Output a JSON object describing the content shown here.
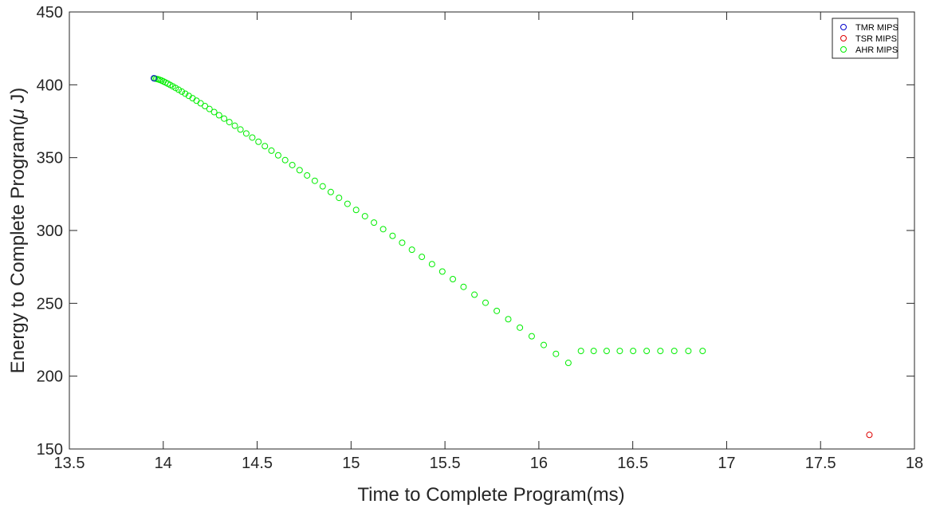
{
  "chart_data": {
    "type": "scatter",
    "xlabel": "Time to Complete Program(ms)",
    "ylabel_parts": [
      "Energy to Complete Program(",
      "μ",
      " J)"
    ],
    "xlim": [
      13.5,
      18
    ],
    "ylim": [
      150,
      450
    ],
    "xticks": [
      "13.5",
      "14",
      "14.5",
      "15",
      "15.5",
      "16",
      "16.5",
      "17",
      "17.5",
      "18"
    ],
    "yticks": [
      "150",
      "200",
      "250",
      "300",
      "350",
      "400",
      "450"
    ],
    "grid": false,
    "legend_position": "top-right",
    "series": [
      {
        "name": "TMR MIPS",
        "color": "#0000cc",
        "marker": "open-circle",
        "x": [
          13.95
        ],
        "y": [
          404.5
        ]
      },
      {
        "name": "TSR MIPS",
        "color": "#dd0000",
        "marker": "open-circle",
        "x": [
          17.76
        ],
        "y": [
          159.7
        ]
      },
      {
        "name": "AHR MIPS",
        "color": "#00ee00",
        "marker": "open-circle",
        "x": [
          13.955,
          13.963,
          13.972,
          13.981,
          13.991,
          14.001,
          14.012,
          14.024,
          14.037,
          14.051,
          14.066,
          14.082,
          14.099,
          14.117,
          14.136,
          14.156,
          14.177,
          14.199,
          14.222,
          14.246,
          14.271,
          14.297,
          14.324,
          14.352,
          14.381,
          14.411,
          14.442,
          14.474,
          14.507,
          14.541,
          14.576,
          14.612,
          14.649,
          14.687,
          14.726,
          14.766,
          14.807,
          14.849,
          14.892,
          14.936,
          14.981,
          15.027,
          15.074,
          15.122,
          15.171,
          15.221,
          15.272,
          15.324,
          15.377,
          15.431,
          15.486,
          15.542,
          15.599,
          15.657,
          15.716,
          15.776,
          15.837,
          15.899,
          15.962,
          16.026,
          16.091,
          16.157,
          16.224,
          16.292,
          16.361,
          16.431,
          16.502,
          16.574,
          16.647,
          16.721,
          16.796,
          16.872
        ],
        "y": [
          404.3,
          404.1,
          403.8,
          403.4,
          402.9,
          402.3,
          401.6,
          400.8,
          399.9,
          398.9,
          397.8,
          396.6,
          395.3,
          393.9,
          392.4,
          390.8,
          389.1,
          387.3,
          385.4,
          383.4,
          381.3,
          379.1,
          376.8,
          374.4,
          371.9,
          369.3,
          366.6,
          363.8,
          360.9,
          357.9,
          354.8,
          351.6,
          348.3,
          344.9,
          341.4,
          337.8,
          334.1,
          330.3,
          326.4,
          322.4,
          318.3,
          314.1,
          309.8,
          305.4,
          300.9,
          296.3,
          291.6,
          286.8,
          281.9,
          276.9,
          271.8,
          266.6,
          261.3,
          255.9,
          250.4,
          244.8,
          239.1,
          233.3,
          227.4,
          221.4,
          215.3,
          209.1,
          217.3,
          217.3,
          217.3,
          217.3,
          217.3,
          217.3,
          217.3,
          217.3,
          217.3,
          217.3
        ]
      }
    ]
  }
}
